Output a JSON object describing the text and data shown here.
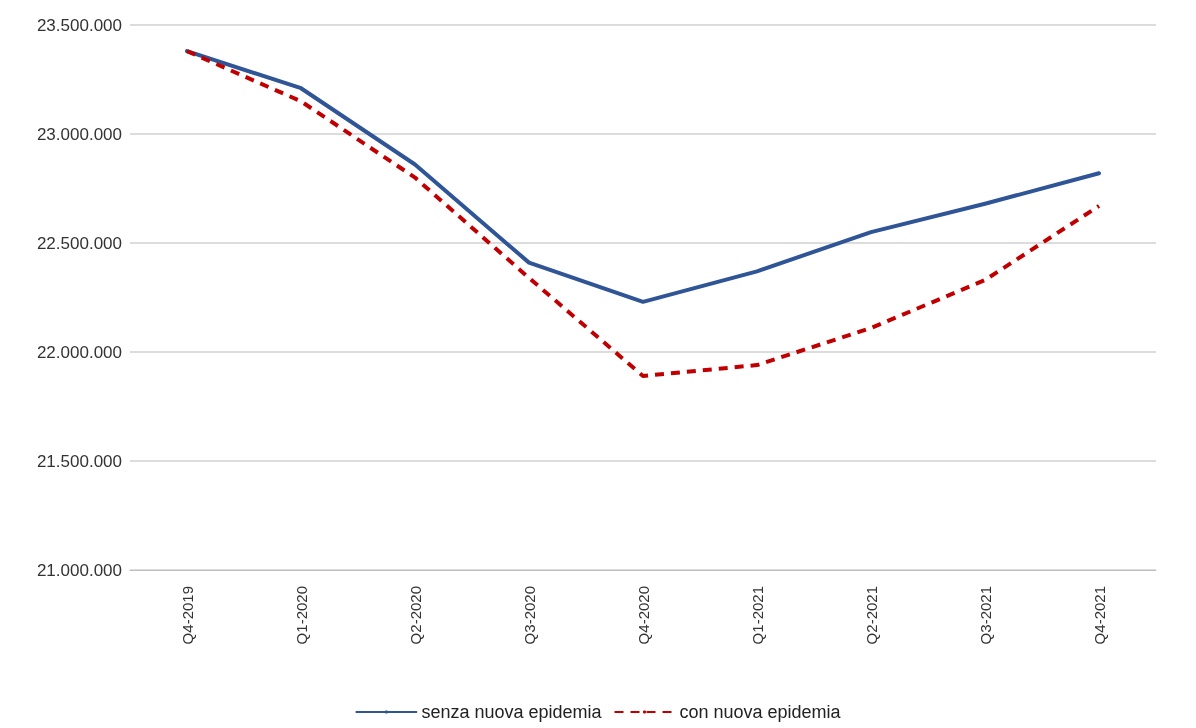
{
  "chart_data": {
    "type": "line",
    "categories": [
      "Q4-2019",
      "Q1-2020",
      "Q2-2020",
      "Q3-2020",
      "Q4-2020",
      "Q1-2021",
      "Q2-2021",
      "Q3-2021",
      "Q4-2021"
    ],
    "series": [
      {
        "name": "senza nuova epidemia",
        "color": "#2f5597",
        "line_style": "solid",
        "values": [
          23380000,
          23210000,
          22860000,
          22410000,
          22230000,
          22370000,
          22550000,
          22680000,
          22820000
        ]
      },
      {
        "name": "con nuova epidemia",
        "color": "#c00000",
        "line_style": "dashed",
        "values": [
          23380000,
          23150000,
          22800000,
          22340000,
          21890000,
          21940000,
          22110000,
          22330000,
          22670000
        ]
      }
    ],
    "ylim": [
      21000000,
      23500000
    ],
    "yticks": [
      {
        "value": 21000000,
        "label": "21.000.000"
      },
      {
        "value": 21500000,
        "label": "21.500.000"
      },
      {
        "value": 22000000,
        "label": "22.000.000"
      },
      {
        "value": 22500000,
        "label": "22.500.000"
      },
      {
        "value": 23000000,
        "label": "23.000.000"
      },
      {
        "value": 23500000,
        "label": "23.500.000"
      }
    ],
    "grid": "y",
    "legend": "bottom",
    "marker": "none"
  }
}
